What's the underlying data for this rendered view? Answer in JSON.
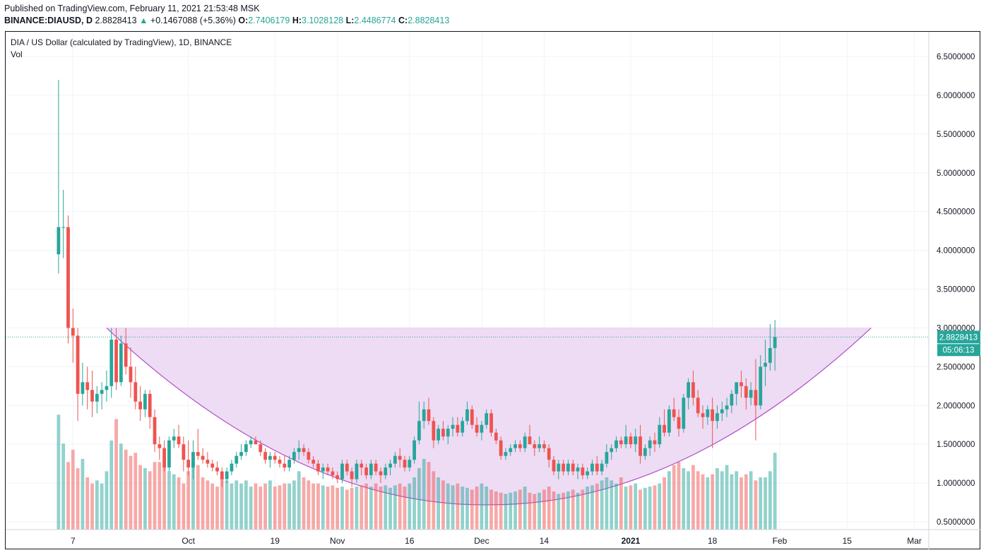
{
  "header": {
    "published": "Published on TradingView.com, February 11, 2021 21:53:48 MSK",
    "symbol": "BINANCE:DIAUSD, D",
    "last": "2.8828413",
    "change": "+0.1467088 (+5.36%)",
    "open_label": "O:",
    "open": "2.7406179",
    "high_label": "H:",
    "high": "3.1028128",
    "low_label": "L:",
    "low": "2.4486774",
    "close_label": "C:",
    "close": "2.8828413"
  },
  "legend": {
    "title": "DIA / US Dollar (calculated by TradingView), 1D, BINANCE",
    "vol": "Vol"
  },
  "colors": {
    "up": "#26a69a",
    "down": "#ef5350",
    "pattern_fill": "#ead6f2",
    "pattern_line": "#b150c8"
  },
  "price_tag": {
    "value": "2.8828413",
    "countdown": "05:06:13"
  },
  "chart_data": {
    "type": "candlestick",
    "x_ticks": [
      "7",
      "Oct",
      "19",
      "Nov",
      "16",
      "Dec",
      "14",
      "2021",
      "18",
      "Feb",
      "15",
      "Mar"
    ],
    "y_ticks": [
      "0.5000000",
      "1.0000000",
      "1.5000000",
      "2.0000000",
      "2.5000000",
      "3.0000000",
      "3.5000000",
      "4.0000000",
      "4.5000000",
      "5.0000000",
      "5.5000000",
      "6.0000000",
      "6.5000000"
    ],
    "ylim": [
      0.4,
      6.75
    ],
    "grid": true,
    "x_range": [
      "2020-08-24",
      "2021-03-04"
    ],
    "first_bar": "2020-09-04",
    "pattern": {
      "type": "cup",
      "rim_price": 3.0,
      "bottom_price": 0.72,
      "left_rim_date": "2020-09-14",
      "bottom_date": "2020-12-03",
      "right_rim_date": "2021-02-20"
    },
    "ohlc": [
      [
        3.95,
        6.2,
        3.7,
        4.3
      ],
      [
        4.3,
        4.78,
        3.9,
        4.3
      ],
      [
        4.3,
        4.45,
        2.8,
        3.0
      ],
      [
        3.0,
        3.25,
        2.55,
        2.9
      ],
      [
        2.9,
        3.0,
        1.8,
        2.15
      ],
      [
        2.15,
        2.55,
        2.0,
        2.3
      ],
      [
        2.3,
        2.5,
        1.95,
        2.2
      ],
      [
        2.2,
        2.45,
        1.85,
        2.05
      ],
      [
        2.05,
        2.25,
        1.9,
        2.15
      ],
      [
        2.15,
        2.3,
        1.95,
        2.2
      ],
      [
        2.2,
        2.45,
        2.05,
        2.25
      ],
      [
        2.25,
        3.0,
        2.1,
        2.85
      ],
      [
        2.85,
        3.0,
        2.2,
        2.3
      ],
      [
        2.3,
        2.9,
        2.25,
        2.8
      ],
      [
        2.8,
        3.0,
        2.4,
        2.5
      ],
      [
        2.5,
        2.75,
        2.1,
        2.3
      ],
      [
        2.3,
        2.5,
        1.95,
        2.05
      ],
      [
        2.05,
        2.25,
        1.8,
        1.95
      ],
      [
        1.95,
        2.2,
        1.85,
        2.15
      ],
      [
        2.15,
        2.2,
        1.7,
        1.85
      ],
      [
        1.85,
        1.95,
        1.4,
        1.5
      ],
      [
        1.5,
        1.6,
        1.3,
        1.45
      ],
      [
        1.45,
        1.55,
        1.15,
        1.2
      ],
      [
        1.2,
        1.6,
        1.15,
        1.55
      ],
      [
        1.55,
        1.7,
        1.45,
        1.6
      ],
      [
        1.6,
        1.75,
        1.45,
        1.5
      ],
      [
        1.5,
        1.6,
        1.15,
        1.3
      ],
      [
        1.3,
        1.55,
        1.1,
        1.2
      ],
      [
        1.2,
        1.55,
        1.05,
        1.4
      ],
      [
        1.4,
        1.7,
        1.3,
        1.35
      ],
      [
        1.35,
        1.45,
        1.25,
        1.3
      ],
      [
        1.3,
        1.4,
        1.2,
        1.25
      ],
      [
        1.25,
        1.3,
        1.15,
        1.2
      ],
      [
        1.2,
        1.28,
        1.1,
        1.15
      ],
      [
        1.15,
        1.2,
        0.95,
        1.05
      ],
      [
        1.05,
        1.2,
        1.0,
        1.15
      ],
      [
        1.15,
        1.3,
        1.1,
        1.25
      ],
      [
        1.25,
        1.4,
        1.2,
        1.35
      ],
      [
        1.35,
        1.5,
        1.3,
        1.4
      ],
      [
        1.4,
        1.55,
        1.35,
        1.5
      ],
      [
        1.5,
        1.6,
        1.45,
        1.55
      ],
      [
        1.55,
        1.6,
        1.5,
        1.5
      ],
      [
        1.5,
        1.55,
        1.35,
        1.4
      ],
      [
        1.4,
        1.45,
        1.25,
        1.3
      ],
      [
        1.3,
        1.4,
        1.2,
        1.35
      ],
      [
        1.35,
        1.4,
        1.25,
        1.3
      ],
      [
        1.3,
        1.35,
        1.2,
        1.25
      ],
      [
        1.25,
        1.35,
        1.15,
        1.2
      ],
      [
        1.2,
        1.35,
        1.15,
        1.3
      ],
      [
        1.3,
        1.45,
        1.25,
        1.4
      ],
      [
        1.4,
        1.55,
        1.3,
        1.45
      ],
      [
        1.45,
        1.5,
        1.35,
        1.4
      ],
      [
        1.4,
        1.45,
        1.25,
        1.3
      ],
      [
        1.3,
        1.35,
        1.2,
        1.25
      ],
      [
        1.25,
        1.3,
        1.1,
        1.15
      ],
      [
        1.15,
        1.25,
        1.05,
        1.2
      ],
      [
        1.2,
        1.25,
        1.1,
        1.15
      ],
      [
        1.15,
        1.2,
        1.05,
        1.1
      ],
      [
        1.1,
        1.15,
        1.0,
        1.05
      ],
      [
        1.05,
        1.3,
        1.0,
        1.25
      ],
      [
        1.25,
        1.3,
        1.1,
        1.15
      ],
      [
        1.15,
        1.2,
        0.95,
        1.05
      ],
      [
        1.05,
        1.3,
        1.0,
        1.25
      ],
      [
        1.25,
        1.3,
        1.1,
        1.2
      ],
      [
        1.2,
        1.25,
        1.05,
        1.1
      ],
      [
        1.1,
        1.3,
        1.05,
        1.25
      ],
      [
        1.25,
        1.3,
        1.1,
        1.15
      ],
      [
        1.15,
        1.2,
        1.0,
        1.1
      ],
      [
        1.1,
        1.25,
        1.05,
        1.2
      ],
      [
        1.2,
        1.3,
        1.1,
        1.25
      ],
      [
        1.25,
        1.4,
        1.2,
        1.35
      ],
      [
        1.35,
        1.45,
        1.2,
        1.3
      ],
      [
        1.3,
        1.35,
        1.15,
        1.2
      ],
      [
        1.2,
        1.35,
        1.15,
        1.3
      ],
      [
        1.3,
        1.6,
        1.25,
        1.55
      ],
      [
        1.55,
        2.05,
        1.5,
        1.8
      ],
      [
        1.8,
        2.05,
        1.7,
        1.95
      ],
      [
        1.95,
        2.1,
        1.75,
        1.8
      ],
      [
        1.8,
        1.85,
        1.45,
        1.55
      ],
      [
        1.55,
        1.75,
        1.5,
        1.7
      ],
      [
        1.7,
        1.8,
        1.55,
        1.6
      ],
      [
        1.6,
        1.75,
        1.5,
        1.7
      ],
      [
        1.7,
        1.85,
        1.6,
        1.75
      ],
      [
        1.75,
        1.85,
        1.6,
        1.65
      ],
      [
        1.65,
        1.85,
        1.6,
        1.8
      ],
      [
        1.8,
        2.05,
        1.75,
        1.95
      ],
      [
        1.95,
        2.0,
        1.7,
        1.75
      ],
      [
        1.75,
        1.85,
        1.6,
        1.65
      ],
      [
        1.65,
        1.8,
        1.55,
        1.75
      ],
      [
        1.75,
        1.95,
        1.7,
        1.9
      ],
      [
        1.9,
        1.95,
        1.6,
        1.65
      ],
      [
        1.65,
        1.7,
        1.5,
        1.55
      ],
      [
        1.55,
        1.6,
        1.3,
        1.35
      ],
      [
        1.35,
        1.45,
        1.3,
        1.4
      ],
      [
        1.4,
        1.5,
        1.35,
        1.45
      ],
      [
        1.45,
        1.55,
        1.4,
        1.5
      ],
      [
        1.5,
        1.55,
        1.4,
        1.45
      ],
      [
        1.45,
        1.65,
        1.4,
        1.6
      ],
      [
        1.6,
        1.75,
        1.5,
        1.5
      ],
      [
        1.5,
        1.55,
        1.35,
        1.45
      ],
      [
        1.45,
        1.6,
        1.4,
        1.5
      ],
      [
        1.5,
        1.55,
        1.4,
        1.45
      ],
      [
        1.45,
        1.5,
        1.2,
        1.3
      ],
      [
        1.3,
        1.35,
        1.1,
        1.15
      ],
      [
        1.15,
        1.3,
        1.05,
        1.25
      ],
      [
        1.25,
        1.3,
        1.1,
        1.15
      ],
      [
        1.15,
        1.3,
        1.1,
        1.25
      ],
      [
        1.25,
        1.3,
        1.1,
        1.15
      ],
      [
        1.15,
        1.25,
        1.05,
        1.2
      ],
      [
        1.2,
        1.25,
        1.05,
        1.1
      ],
      [
        1.1,
        1.2,
        1.05,
        1.15
      ],
      [
        1.15,
        1.3,
        1.1,
        1.25
      ],
      [
        1.25,
        1.35,
        1.1,
        1.15
      ],
      [
        1.15,
        1.3,
        1.1,
        1.25
      ],
      [
        1.25,
        1.5,
        1.2,
        1.4
      ],
      [
        1.4,
        1.5,
        1.3,
        1.45
      ],
      [
        1.45,
        1.6,
        1.4,
        1.55
      ],
      [
        1.55,
        1.6,
        1.45,
        1.5
      ],
      [
        1.5,
        1.75,
        1.45,
        1.6
      ],
      [
        1.6,
        1.65,
        1.45,
        1.5
      ],
      [
        1.5,
        1.7,
        1.4,
        1.6
      ],
      [
        1.6,
        1.75,
        1.25,
        1.35
      ],
      [
        1.35,
        1.5,
        1.3,
        1.45
      ],
      [
        1.45,
        1.6,
        1.35,
        1.55
      ],
      [
        1.55,
        1.65,
        1.4,
        1.5
      ],
      [
        1.5,
        1.85,
        1.45,
        1.75
      ],
      [
        1.75,
        1.95,
        1.6,
        1.65
      ],
      [
        1.65,
        2.0,
        1.6,
        1.95
      ],
      [
        1.95,
        2.1,
        1.8,
        1.85
      ],
      [
        1.85,
        1.95,
        1.6,
        1.7
      ],
      [
        1.7,
        2.15,
        1.65,
        2.1
      ],
      [
        2.1,
        2.35,
        1.95,
        2.3
      ],
      [
        2.3,
        2.45,
        2.0,
        2.1
      ],
      [
        2.1,
        2.2,
        1.85,
        1.9
      ],
      [
        1.9,
        2.0,
        1.7,
        1.85
      ],
      [
        1.85,
        2.0,
        1.75,
        1.95
      ],
      [
        1.95,
        2.1,
        1.45,
        1.8
      ],
      [
        1.8,
        2.0,
        1.7,
        1.9
      ],
      [
        1.9,
        2.05,
        1.8,
        1.95
      ],
      [
        1.95,
        2.1,
        1.85,
        2.0
      ],
      [
        2.0,
        2.2,
        1.9,
        2.15
      ],
      [
        2.15,
        2.3,
        2.0,
        2.3
      ],
      [
        2.3,
        2.45,
        2.1,
        2.25
      ],
      [
        2.25,
        2.35,
        1.95,
        2.1
      ],
      [
        2.1,
        2.3,
        2.0,
        2.2
      ],
      [
        2.2,
        2.6,
        1.55,
        2.0
      ],
      [
        2.0,
        2.65,
        1.95,
        2.5
      ],
      [
        2.5,
        2.85,
        2.25,
        2.55
      ],
      [
        2.55,
        3.05,
        2.45,
        2.74
      ],
      [
        2.7406,
        3.1028,
        2.4487,
        2.8828
      ]
    ],
    "volumes": [
      1.87,
      1.4,
      1.1,
      1.3,
      1.0,
      1.15,
      0.85,
      0.75,
      0.8,
      0.75,
      0.95,
      1.45,
      1.8,
      1.4,
      1.3,
      1.2,
      1.25,
      1.05,
      1.0,
      0.95,
      1.1,
      1.1,
      1.15,
      0.95,
      0.9,
      0.85,
      0.75,
      0.95,
      1.1,
      1.05,
      0.85,
      0.8,
      0.75,
      0.7,
      0.85,
      0.8,
      0.75,
      0.8,
      0.75,
      0.8,
      0.7,
      0.75,
      0.7,
      0.75,
      0.8,
      0.7,
      0.72,
      0.75,
      0.75,
      0.8,
      0.95,
      0.85,
      0.8,
      0.75,
      0.75,
      0.72,
      0.7,
      0.72,
      0.68,
      0.7,
      0.65,
      0.68,
      0.7,
      0.72,
      0.75,
      0.7,
      0.75,
      0.7,
      0.72,
      0.68,
      0.72,
      0.75,
      0.7,
      0.75,
      0.85,
      1.0,
      1.15,
      1.1,
      0.95,
      0.85,
      0.8,
      0.75,
      0.72,
      0.75,
      0.7,
      0.68,
      0.65,
      0.7,
      0.75,
      0.7,
      0.65,
      0.62,
      0.6,
      0.58,
      0.6,
      0.62,
      0.65,
      0.7,
      0.6,
      0.58,
      0.6,
      0.65,
      0.7,
      0.62,
      0.58,
      0.6,
      0.62,
      0.65,
      0.6,
      0.65,
      0.7,
      0.72,
      0.75,
      0.8,
      0.85,
      0.8,
      0.75,
      0.85,
      0.7,
      0.72,
      0.75,
      0.65,
      0.68,
      0.7,
      0.72,
      0.75,
      0.85,
      0.95,
      1.05,
      1.1,
      1.0,
      0.95,
      1.05,
      0.95,
      0.9,
      0.85,
      0.9,
      1.0,
      0.95,
      1.05,
      0.9,
      0.95,
      0.85,
      0.9,
      0.95,
      0.8,
      0.85,
      0.85,
      0.95,
      1.25
    ]
  }
}
